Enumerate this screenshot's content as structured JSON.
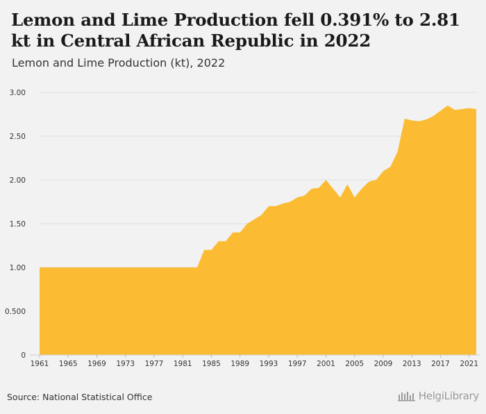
{
  "header": {
    "title": "Lemon and Lime Production fell 0.391% to 2.81 kt in Central African Republic in 2022",
    "subtitle": "Lemon and Lime Production (kt), 2022"
  },
  "footer": {
    "source": "Source: National Statistical Office",
    "logo_text": "HelgiLibrary"
  },
  "chart_data": {
    "type": "area",
    "title": "",
    "xlabel": "",
    "ylabel": "",
    "color": "#fbbc33",
    "grid": true,
    "ylim": [
      0,
      3.0
    ],
    "xlim": [
      1961,
      2022
    ],
    "y_ticks": [
      0,
      0.5,
      1.0,
      1.5,
      2.0,
      2.5,
      3.0
    ],
    "y_tick_labels": [
      "0",
      "0.500",
      "1.00",
      "1.50",
      "2.00",
      "2.50",
      "3.00"
    ],
    "x_ticks": [
      1961,
      1965,
      1969,
      1973,
      1977,
      1981,
      1985,
      1989,
      1993,
      1997,
      2001,
      2005,
      2009,
      2013,
      2017,
      2021
    ],
    "x": [
      1961,
      1962,
      1963,
      1964,
      1965,
      1966,
      1967,
      1968,
      1969,
      1970,
      1971,
      1972,
      1973,
      1974,
      1975,
      1976,
      1977,
      1978,
      1979,
      1980,
      1981,
      1982,
      1983,
      1984,
      1985,
      1986,
      1987,
      1988,
      1989,
      1990,
      1991,
      1992,
      1993,
      1994,
      1995,
      1996,
      1997,
      1998,
      1999,
      2000,
      2001,
      2002,
      2003,
      2004,
      2005,
      2006,
      2007,
      2008,
      2009,
      2010,
      2011,
      2012,
      2013,
      2014,
      2015,
      2016,
      2017,
      2018,
      2019,
      2020,
      2021,
      2022
    ],
    "values": [
      1.0,
      1.0,
      1.0,
      1.0,
      1.0,
      1.0,
      1.0,
      1.0,
      1.0,
      1.0,
      1.0,
      1.0,
      1.0,
      1.0,
      1.0,
      1.0,
      1.0,
      1.0,
      1.0,
      1.0,
      1.0,
      1.0,
      1.0,
      1.2,
      1.2,
      1.3,
      1.3,
      1.4,
      1.4,
      1.5,
      1.55,
      1.6,
      1.7,
      1.7,
      1.73,
      1.75,
      1.8,
      1.82,
      1.9,
      1.91,
      2.0,
      1.9,
      1.8,
      1.95,
      1.8,
      1.9,
      1.98,
      2.0,
      2.1,
      2.15,
      2.32,
      2.7,
      2.68,
      2.67,
      2.69,
      2.73,
      2.79,
      2.85,
      2.8,
      2.81,
      2.82,
      2.81
    ]
  }
}
